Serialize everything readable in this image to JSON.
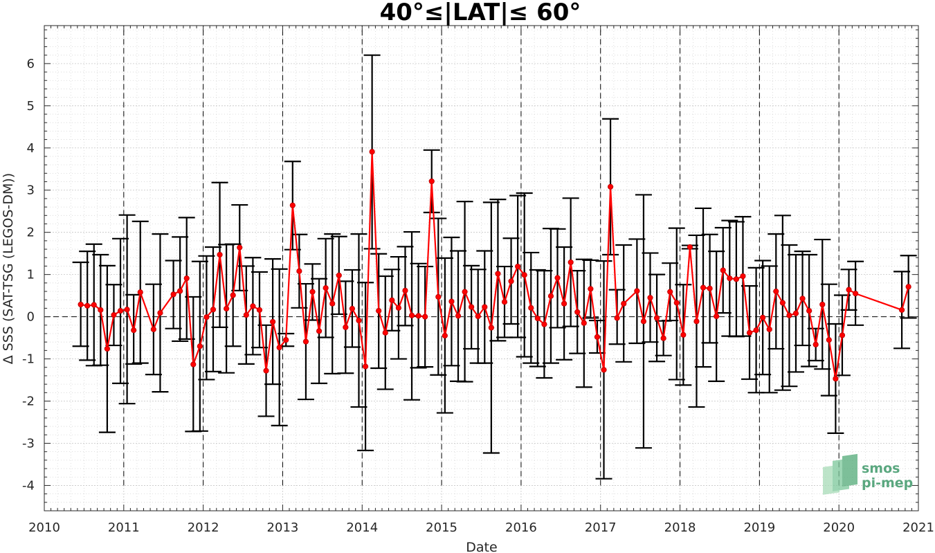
{
  "chart_data": {
    "type": "line",
    "title": "40°≤|LAT|≤ 60°",
    "xlabel": "Date",
    "ylabel": "Δ SSS (SAT-TSG (LEGOS-DM))",
    "xlim": [
      2010,
      2021
    ],
    "ylim": [
      -4.6,
      6.9
    ],
    "x_ticks": [
      "2010",
      "2011",
      "2012",
      "2013",
      "2014",
      "2015",
      "2016",
      "2017",
      "2018",
      "2019",
      "2020",
      "2021"
    ],
    "y_ticks": [
      "-4",
      "-3",
      "-2",
      "-1",
      "0",
      "1",
      "2",
      "3",
      "4",
      "5",
      "6"
    ],
    "grid": "minor dotted",
    "year_boundaries": "vertical dashed lines",
    "zero_line": "horizontal dashed line",
    "series": [
      {
        "color": "#ff0000",
        "error_bar_color": "#000000",
        "points": [
          {
            "x": "2010-06",
            "y": 0.29,
            "lo": -0.7,
            "hi": 1.29
          },
          {
            "x": "2010-07",
            "y": 0.26,
            "lo": -1.03,
            "hi": 1.55
          },
          {
            "x": "2010-08",
            "y": 0.28,
            "lo": -1.16,
            "hi": 1.72
          },
          {
            "x": "2010-09",
            "y": 0.16,
            "lo": -1.15,
            "hi": 1.47
          },
          {
            "x": "2010-10",
            "y": -0.76,
            "lo": -2.74,
            "hi": 1.21
          },
          {
            "x": "2010-11",
            "y": 0.04,
            "lo": -0.68,
            "hi": 0.76
          },
          {
            "x": "2010-12",
            "y": 0.14,
            "lo": -1.58,
            "hi": 1.85
          },
          {
            "x": "2011-01",
            "y": 0.17,
            "lo": -2.06,
            "hi": 2.41
          },
          {
            "x": "2011-02",
            "y": -0.32,
            "lo": -1.12,
            "hi": 0.52
          },
          {
            "x": "2011-03",
            "y": 0.58,
            "lo": -1.1,
            "hi": 2.26
          },
          {
            "x": "2011-05",
            "y": -0.3,
            "lo": -1.37,
            "hi": 0.77
          },
          {
            "x": "2011-06",
            "y": 0.09,
            "lo": -1.78,
            "hi": 1.96
          },
          {
            "x": "2011-08",
            "y": 0.53,
            "lo": -0.28,
            "hi": 1.33
          },
          {
            "x": "2011-09",
            "y": 0.61,
            "lo": -0.58,
            "hi": 1.89
          },
          {
            "x": "2011-10",
            "y": 0.91,
            "lo": -0.53,
            "hi": 2.35
          },
          {
            "x": "2011-11",
            "y": -1.13,
            "lo": -2.72,
            "hi": 0.47
          },
          {
            "x": "2011-12",
            "y": -0.7,
            "lo": -2.71,
            "hi": 1.31
          },
          {
            "x": "2012-01",
            "y": -0.01,
            "lo": -1.49,
            "hi": 1.44
          },
          {
            "x": "2012-02",
            "y": 0.17,
            "lo": -1.3,
            "hi": 1.65
          },
          {
            "x": "2012-03",
            "y": 1.47,
            "lo": -0.25,
            "hi": 3.18
          },
          {
            "x": "2012-04",
            "y": 0.19,
            "lo": -1.33,
            "hi": 1.71
          },
          {
            "x": "2012-05",
            "y": 0.51,
            "lo": -0.7,
            "hi": 1.72
          },
          {
            "x": "2012-06",
            "y": 1.64,
            "lo": 0.62,
            "hi": 2.65
          },
          {
            "x": "2012-07",
            "y": 0.04,
            "lo": -1.12,
            "hi": 1.2
          },
          {
            "x": "2012-08",
            "y": 0.25,
            "lo": -0.9,
            "hi": 1.4
          },
          {
            "x": "2012-09",
            "y": 0.16,
            "lo": -0.73,
            "hi": 1.06
          },
          {
            "x": "2012-10",
            "y": -1.28,
            "lo": -2.36,
            "hi": -0.2
          },
          {
            "x": "2012-11",
            "y": -0.12,
            "lo": -1.6,
            "hi": 1.37
          },
          {
            "x": "2012-12",
            "y": -0.73,
            "lo": -2.58,
            "hi": 1.13
          },
          {
            "x": "2013-01",
            "y": -0.55,
            "lo": -0.7,
            "hi": -0.4
          },
          {
            "x": "2013-02",
            "y": 2.64,
            "lo": 1.59,
            "hi": 3.68
          },
          {
            "x": "2013-03",
            "y": 1.08,
            "lo": 0.21,
            "hi": 1.95
          },
          {
            "x": "2013-04",
            "y": -0.59,
            "lo": -1.96,
            "hi": 0.78
          },
          {
            "x": "2013-05",
            "y": 0.59,
            "lo": -0.08,
            "hi": 1.25
          },
          {
            "x": "2013-06",
            "y": -0.34,
            "lo": -1.58,
            "hi": 0.9
          },
          {
            "x": "2013-07",
            "y": 0.68,
            "lo": -0.49,
            "hi": 1.85
          },
          {
            "x": "2013-08",
            "y": 0.31,
            "lo": -1.35,
            "hi": 1.96
          },
          {
            "x": "2013-09",
            "y": 0.98,
            "lo": 0.06,
            "hi": 1.9
          },
          {
            "x": "2013-10",
            "y": -0.25,
            "lo": -1.34,
            "hi": 0.84
          },
          {
            "x": "2013-11",
            "y": 0.19,
            "lo": -0.72,
            "hi": 1.11
          },
          {
            "x": "2013-12",
            "y": -0.09,
            "lo": -2.14,
            "hi": 1.96
          },
          {
            "x": "2014-01",
            "y": -1.18,
            "lo": -3.17,
            "hi": 0.81
          },
          {
            "x": "2014-02",
            "y": 3.91,
            "lo": 1.61,
            "hi": 6.2
          },
          {
            "x": "2014-03",
            "y": 0.14,
            "lo": -1.22,
            "hi": 1.49
          },
          {
            "x": "2014-04",
            "y": -0.38,
            "lo": -1.72,
            "hi": 0.96
          },
          {
            "x": "2014-05",
            "y": 0.39,
            "lo": -0.33,
            "hi": 1.12
          },
          {
            "x": "2014-06",
            "y": 0.21,
            "lo": -1.0,
            "hi": 1.42
          },
          {
            "x": "2014-07",
            "y": 0.62,
            "lo": -0.21,
            "hi": 1.66
          },
          {
            "x": "2014-08",
            "y": 0.03,
            "lo": -1.97,
            "hi": 2.01
          },
          {
            "x": "2014-09",
            "y": 0.02,
            "lo": -1.21,
            "hi": 1.26
          },
          {
            "x": "2014-10",
            "y": 0.0,
            "lo": -1.19,
            "hi": 1.19
          },
          {
            "x": "2014-11",
            "y": 3.21,
            "lo": 2.47,
            "hi": 3.95
          },
          {
            "x": "2014-12",
            "y": 0.47,
            "lo": -1.38,
            "hi": 2.33
          },
          {
            "x": "2015-01",
            "y": -0.45,
            "lo": -2.28,
            "hi": 1.39
          },
          {
            "x": "2015-02",
            "y": 0.36,
            "lo": -1.16,
            "hi": 1.88
          },
          {
            "x": "2015-03",
            "y": 0.02,
            "lo": -1.53,
            "hi": 1.56
          },
          {
            "x": "2015-04",
            "y": 0.59,
            "lo": -1.54,
            "hi": 2.73
          },
          {
            "x": "2015-05",
            "y": 0.23,
            "lo": -0.76,
            "hi": 1.21
          },
          {
            "x": "2015-06",
            "y": 0.01,
            "lo": -1.1,
            "hi": 1.12
          },
          {
            "x": "2015-07",
            "y": 0.23,
            "lo": -1.1,
            "hi": 1.56
          },
          {
            "x": "2015-08",
            "y": -0.26,
            "lo": -3.23,
            "hi": 2.71
          },
          {
            "x": "2015-09",
            "y": 1.02,
            "lo": -0.57,
            "hi": 2.78
          },
          {
            "x": "2015-10",
            "y": 0.35,
            "lo": -0.49,
            "hi": 1.19
          },
          {
            "x": "2015-11",
            "y": 0.84,
            "lo": -0.17,
            "hi": 1.86
          },
          {
            "x": "2015-12",
            "y": 1.19,
            "lo": -0.49,
            "hi": 2.87
          },
          {
            "x": "2016-01",
            "y": 0.99,
            "lo": -0.95,
            "hi": 2.93
          },
          {
            "x": "2016-02",
            "y": 0.21,
            "lo": -1.1,
            "hi": 1.52
          },
          {
            "x": "2016-03",
            "y": -0.04,
            "lo": -1.18,
            "hi": 1.11
          },
          {
            "x": "2016-04",
            "y": -0.18,
            "lo": -1.45,
            "hi": 1.09
          },
          {
            "x": "2016-05",
            "y": 0.49,
            "lo": -1.1,
            "hi": 2.09
          },
          {
            "x": "2016-06",
            "y": 0.92,
            "lo": -0.26,
            "hi": 2.08
          },
          {
            "x": "2016-07",
            "y": 0.31,
            "lo": -1.02,
            "hi": 1.65
          },
          {
            "x": "2016-08",
            "y": 1.29,
            "lo": -0.23,
            "hi": 2.81
          },
          {
            "x": "2016-09",
            "y": 0.11,
            "lo": -0.87,
            "hi": 1.09
          },
          {
            "x": "2016-10",
            "y": -0.15,
            "lo": -1.67,
            "hi": 1.36
          },
          {
            "x": "2016-11",
            "y": 0.66,
            "lo": -0.03,
            "hi": 1.34
          },
          {
            "x": "2016-12",
            "y": -0.48,
            "lo": -0.86,
            "hi": -0.09
          },
          {
            "x": "2017-01",
            "y": -1.26,
            "lo": -3.84,
            "hi": 1.32
          },
          {
            "x": "2017-02",
            "y": 3.08,
            "lo": 1.47,
            "hi": 4.69
          },
          {
            "x": "2017-03",
            "y": -0.03,
            "lo": -0.65,
            "hi": 0.64
          },
          {
            "x": "2017-04",
            "y": 0.31,
            "lo": -1.07,
            "hi": 1.7
          },
          {
            "x": "2017-06",
            "y": 0.61,
            "lo": -0.63,
            "hi": 1.84
          },
          {
            "x": "2017-07",
            "y": -0.11,
            "lo": -3.11,
            "hi": 2.89
          },
          {
            "x": "2017-08",
            "y": 0.45,
            "lo": -0.6,
            "hi": 1.51
          },
          {
            "x": "2017-09",
            "y": -0.03,
            "lo": -1.06,
            "hi": 1.0
          },
          {
            "x": "2017-10",
            "y": -0.51,
            "lo": -0.92,
            "hi": -0.1
          },
          {
            "x": "2017-11",
            "y": 0.59,
            "lo": -0.09,
            "hi": 1.27
          },
          {
            "x": "2017-12",
            "y": 0.33,
            "lo": -1.49,
            "hi": 2.1
          },
          {
            "x": "2018-01",
            "y": -0.43,
            "lo": -1.62,
            "hi": 0.76
          },
          {
            "x": "2018-02",
            "y": 1.65,
            "lo": 1.61,
            "hi": 1.69
          },
          {
            "x": "2018-03",
            "y": -0.11,
            "lo": -2.14,
            "hi": 1.93
          },
          {
            "x": "2018-04",
            "y": 0.69,
            "lo": -1.19,
            "hi": 2.57
          },
          {
            "x": "2018-05",
            "y": 0.67,
            "lo": -0.62,
            "hi": 1.95
          },
          {
            "x": "2018-06",
            "y": 0.01,
            "lo": -1.53,
            "hi": 1.55
          },
          {
            "x": "2018-07",
            "y": 1.1,
            "lo": 0.09,
            "hi": 2.11
          },
          {
            "x": "2018-08",
            "y": 0.91,
            "lo": -0.46,
            "hi": 2.28
          },
          {
            "x": "2018-09",
            "y": 0.89,
            "lo": -0.47,
            "hi": 2.25
          },
          {
            "x": "2018-10",
            "y": 0.96,
            "lo": -0.46,
            "hi": 2.37
          },
          {
            "x": "2018-11",
            "y": -0.38,
            "lo": -1.48,
            "hi": 0.73
          },
          {
            "x": "2018-12",
            "y": -0.32,
            "lo": -1.8,
            "hi": 1.16
          },
          {
            "x": "2019-01",
            "y": -0.02,
            "lo": -1.37,
            "hi": 1.33
          },
          {
            "x": "2019-02",
            "y": -0.3,
            "lo": -1.8,
            "hi": 1.2
          },
          {
            "x": "2019-03",
            "y": 0.6,
            "lo": -0.76,
            "hi": 1.96
          },
          {
            "x": "2019-04",
            "y": 0.33,
            "lo": -1.74,
            "hi": 2.4
          },
          {
            "x": "2019-05",
            "y": 0.03,
            "lo": -1.65,
            "hi": 1.7
          },
          {
            "x": "2019-06",
            "y": 0.08,
            "lo": -1.31,
            "hi": 1.47
          },
          {
            "x": "2019-07",
            "y": 0.43,
            "lo": -0.68,
            "hi": 1.55
          },
          {
            "x": "2019-08",
            "y": 0.14,
            "lo": -1.18,
            "hi": 1.47
          },
          {
            "x": "2019-09",
            "y": -0.66,
            "lo": -1.04,
            "hi": -0.28
          },
          {
            "x": "2019-10",
            "y": 0.29,
            "lo": -1.24,
            "hi": 1.83
          },
          {
            "x": "2019-11",
            "y": -0.55,
            "lo": -1.87,
            "hi": 0.77
          },
          {
            "x": "2019-12",
            "y": -1.47,
            "lo": -2.76,
            "hi": -0.17
          },
          {
            "x": "2020-01",
            "y": -0.44,
            "lo": -1.39,
            "hi": 0.51
          },
          {
            "x": "2020-02",
            "y": 0.64,
            "lo": 0.16,
            "hi": 1.12
          },
          {
            "x": "2020-03",
            "y": 0.55,
            "lo": -0.2,
            "hi": 1.31
          },
          {
            "x": "2020-10",
            "y": 0.16,
            "lo": -0.75,
            "hi": 1.07
          },
          {
            "x": "2020-11",
            "y": 0.71,
            "lo": -0.03,
            "hi": 1.45
          }
        ]
      }
    ]
  },
  "logo": {
    "line1": "smos",
    "line2": "pi-mep",
    "color": "#5aa77f"
  }
}
